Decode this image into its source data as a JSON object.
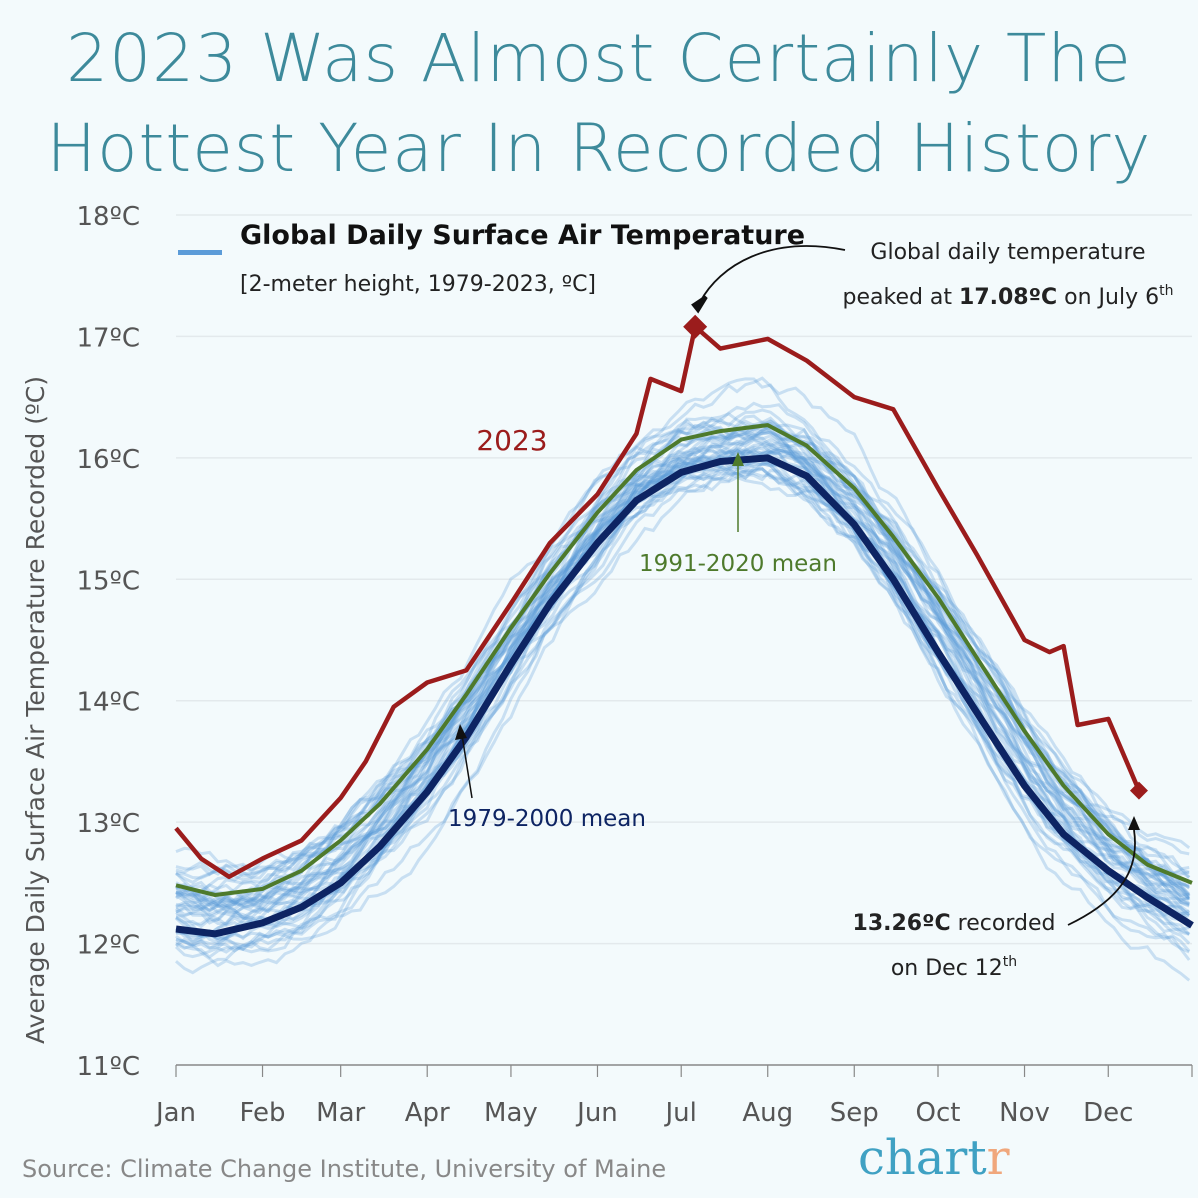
{
  "title_lines": [
    "2023 Was Almost Certainly The",
    "Hottest Year In Recorded History"
  ],
  "source": "Source: Climate Change Institute, University of Maine",
  "logo": {
    "main": "chart",
    "accent": "r"
  },
  "colors": {
    "title": "#3d8a9b",
    "y2023": "#9b1c1c",
    "mean_1991_2020": "#4e7a2c",
    "mean_1979_2000": "#0d2463",
    "individual_years": "#5b9bd8"
  },
  "chart_data": {
    "type": "line",
    "title": "Global Daily Surface Air Temperature",
    "subtitle": "[2-meter height, 1979-2023, ºC]",
    "ylabel": "Average Daily Surface Air Temperature Recorded (ºC)",
    "ylim": [
      11,
      18
    ],
    "yticks": [
      "11ºC",
      "12ºC",
      "13ºC",
      "14ºC",
      "15ºC",
      "16ºC",
      "17ºC",
      "18ºC"
    ],
    "xticks": [
      "Jan",
      "Feb",
      "Mar",
      "Apr",
      "May",
      "Jun",
      "Jul",
      "Aug",
      "Sep",
      "Oct",
      "Nov",
      "Dec"
    ],
    "grid": "horizontal",
    "series": [
      {
        "name": "2023",
        "points": [
          [
            "01-01",
            12.95
          ],
          [
            "01-10",
            12.7
          ],
          [
            "01-20",
            12.55
          ],
          [
            "02-01",
            12.7
          ],
          [
            "02-15",
            12.85
          ],
          [
            "03-01",
            13.2
          ],
          [
            "03-10",
            13.5
          ],
          [
            "03-20",
            13.95
          ],
          [
            "04-01",
            14.15
          ],
          [
            "04-15",
            14.25
          ],
          [
            "05-01",
            14.8
          ],
          [
            "05-15",
            15.3
          ],
          [
            "06-01",
            15.7
          ],
          [
            "06-15",
            16.2
          ],
          [
            "06-20",
            16.65
          ],
          [
            "07-01",
            16.55
          ],
          [
            "07-06",
            17.08
          ],
          [
            "07-15",
            16.9
          ],
          [
            "08-01",
            16.98
          ],
          [
            "08-15",
            16.8
          ],
          [
            "09-01",
            16.5
          ],
          [
            "09-15",
            16.4
          ],
          [
            "10-01",
            15.75
          ],
          [
            "10-15",
            15.2
          ],
          [
            "11-01",
            14.5
          ],
          [
            "11-10",
            14.4
          ],
          [
            "11-15",
            14.45
          ],
          [
            "11-20",
            13.8
          ],
          [
            "12-01",
            13.85
          ],
          [
            "12-12",
            13.26
          ]
        ]
      },
      {
        "name": "1991-2020 mean",
        "points": [
          [
            "01-01",
            12.48
          ],
          [
            "01-15",
            12.4
          ],
          [
            "02-01",
            12.45
          ],
          [
            "02-15",
            12.6
          ],
          [
            "03-01",
            12.85
          ],
          [
            "03-15",
            13.15
          ],
          [
            "04-01",
            13.6
          ],
          [
            "04-15",
            14.05
          ],
          [
            "05-01",
            14.6
          ],
          [
            "05-15",
            15.05
          ],
          [
            "06-01",
            15.55
          ],
          [
            "06-15",
            15.9
          ],
          [
            "07-01",
            16.15
          ],
          [
            "07-15",
            16.22
          ],
          [
            "08-01",
            16.27
          ],
          [
            "08-15",
            16.1
          ],
          [
            "09-01",
            15.75
          ],
          [
            "09-15",
            15.35
          ],
          [
            "10-01",
            14.85
          ],
          [
            "10-15",
            14.35
          ],
          [
            "11-01",
            13.75
          ],
          [
            "11-15",
            13.3
          ],
          [
            "12-01",
            12.9
          ],
          [
            "12-15",
            12.65
          ],
          [
            "12-31",
            12.5
          ]
        ]
      },
      {
        "name": "1979-2000 mean",
        "points": [
          [
            "01-01",
            12.12
          ],
          [
            "01-15",
            12.08
          ],
          [
            "02-01",
            12.17
          ],
          [
            "02-15",
            12.3
          ],
          [
            "03-01",
            12.5
          ],
          [
            "03-15",
            12.8
          ],
          [
            "04-01",
            13.25
          ],
          [
            "04-15",
            13.7
          ],
          [
            "05-01",
            14.3
          ],
          [
            "05-15",
            14.8
          ],
          [
            "06-01",
            15.3
          ],
          [
            "06-15",
            15.65
          ],
          [
            "07-01",
            15.88
          ],
          [
            "07-15",
            15.97
          ],
          [
            "08-01",
            16.0
          ],
          [
            "08-15",
            15.85
          ],
          [
            "09-01",
            15.45
          ],
          [
            "09-15",
            15.0
          ],
          [
            "10-01",
            14.4
          ],
          [
            "10-15",
            13.9
          ],
          [
            "11-01",
            13.3
          ],
          [
            "11-15",
            12.9
          ],
          [
            "12-01",
            12.6
          ],
          [
            "12-15",
            12.38
          ],
          [
            "12-31",
            12.15
          ]
        ]
      }
    ],
    "annotations": {
      "peak_line1": "Global daily temperature",
      "peak_line2_pre": "peaked at ",
      "peak_value": "17.08ºC",
      "peak_line2_post": " on July 6",
      "peak_sup": "th",
      "dec_value": "13.26ºC",
      "dec_line1_post": " recorded",
      "dec_line2": "on Dec 12",
      "dec_sup": "th",
      "label_2023": "2023",
      "label_1991": "1991-2020 mean",
      "label_1979": "1979-2000 mean"
    }
  }
}
